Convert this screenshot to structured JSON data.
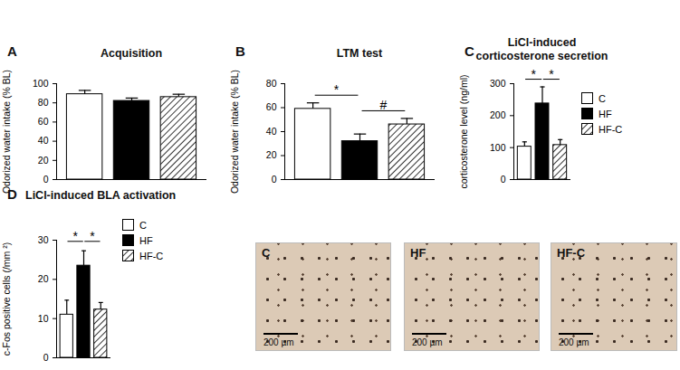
{
  "chart_data": [
    {
      "type": "bar",
      "panel": "A",
      "title": "Acquisition",
      "ylabel": "Odorized water intake (% BL)",
      "categories": [
        "C",
        "HF",
        "HF-C"
      ],
      "values": [
        89,
        82,
        86
      ],
      "errors": [
        4,
        3,
        3
      ],
      "colors": [
        "white",
        "black",
        "hatch"
      ],
      "ylim": [
        0,
        100
      ],
      "yticks": [
        0,
        20,
        40,
        60,
        80,
        100
      ],
      "tick_labels": "y"
    },
    {
      "type": "bar",
      "panel": "B",
      "title": "LTM test",
      "ylabel": "Odorized water intake (% BL)",
      "categories": [
        "C",
        "HF",
        "HF-C"
      ],
      "values": [
        59,
        32,
        46
      ],
      "errors": [
        5,
        6,
        5
      ],
      "colors": [
        "white",
        "black",
        "hatch"
      ],
      "ylim": [
        0,
        80
      ],
      "yticks": [
        0,
        20,
        40,
        60,
        80
      ],
      "tick_labels": "y",
      "annotations": [
        {
          "from": "C",
          "to": "HF",
          "text": "*"
        },
        {
          "from": "HF",
          "to": "HF-C",
          "text": "#"
        }
      ]
    },
    {
      "type": "bar",
      "panel": "C",
      "title": "LiCl-induced\ncorticosterone secretion",
      "ylabel": "corticosterone level (ng/ml)",
      "categories": [
        "C",
        "HF",
        "HF-C"
      ],
      "values": [
        103,
        238,
        108
      ],
      "errors": [
        15,
        52,
        17
      ],
      "colors": [
        "white",
        "black",
        "hatch"
      ],
      "ylim": [
        0,
        300
      ],
      "yticks": [
        0,
        100,
        200,
        300
      ],
      "tick_labels": "y",
      "legend": "right",
      "annotations": [
        {
          "from": "C",
          "to": "HF",
          "text": "*"
        },
        {
          "from": "HF",
          "to": "HF-C",
          "text": "*"
        }
      ]
    },
    {
      "type": "bar",
      "panel": "D",
      "title": "LiCl-induced BLA activation",
      "ylabel": "c-Fos positive cells (/mm ²)",
      "categories": [
        "C",
        "HF",
        "HF-C"
      ],
      "values": [
        11,
        23.5,
        12.3
      ],
      "errors": [
        3.7,
        3.8,
        1.8
      ],
      "colors": [
        "white",
        "black",
        "hatch"
      ],
      "ylim": [
        0,
        30
      ],
      "yticks": [
        0,
        10,
        20,
        30
      ],
      "tick_labels": "y",
      "legend": "right",
      "annotations": [
        {
          "from": "C",
          "to": "HF",
          "text": "*"
        },
        {
          "from": "HF",
          "to": "HF-C",
          "text": "*"
        }
      ]
    }
  ],
  "micrographs": [
    {
      "label": "C",
      "scale_bar": "200 µm"
    },
    {
      "label": "HF",
      "scale_bar": "200 µm"
    },
    {
      "label": "HF-C",
      "scale_bar": "200 µm"
    }
  ]
}
